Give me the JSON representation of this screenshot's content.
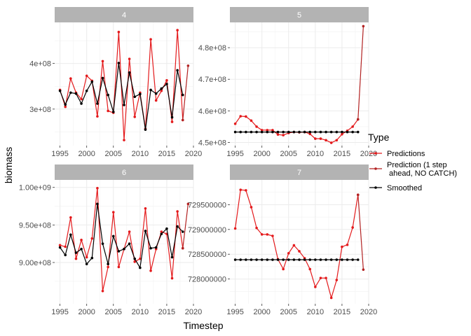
{
  "chart_data": {
    "type": "line",
    "xlabel": "Timestep",
    "ylabel": "biomass",
    "legend": {
      "title": "Type",
      "placement": "right",
      "entries": [
        {
          "series": "Predictions",
          "label_lines": [
            "Predictions"
          ],
          "color": "#e41a1c"
        },
        {
          "series": "Prediction1",
          "label_lines": [
            "Prediction (1 step",
            " ahead, NO CATCH)"
          ],
          "color": "#b22222"
        },
        {
          "series": "Smoothed",
          "label_lines": [
            "Smoothed"
          ],
          "color": "#000000"
        }
      ]
    },
    "grid": true,
    "panels": [
      {
        "strip": "4",
        "xlim": [
          1994,
          2020
        ],
        "ylim": [
          220000000,
          490000000
        ],
        "xticks": [
          1995,
          2000,
          2005,
          2010,
          2015,
          2020
        ],
        "xtick_labels": [
          "1995",
          "2000",
          "2005",
          "2010",
          "2015",
          "2020"
        ],
        "yticks": [
          300000000,
          400000000
        ],
        "ytick_labels": [
          "3e+08",
          "4e+08"
        ],
        "series": [
          {
            "key": "Predictions",
            "x": [
              1995,
              1996,
              1997,
              1998,
              1999,
              2000,
              2001,
              2002,
              2003,
              2004,
              2005,
              2006,
              2007,
              2008,
              2009,
              2010,
              2011,
              2012,
              2013,
              2014,
              2015,
              2016,
              2017,
              2018
            ],
            "values": [
              342000000,
              305000000,
              367000000,
              336000000,
              322000000,
              373000000,
              362000000,
              284000000,
              405000000,
              296000000,
              292000000,
              469000000,
              232000000,
              410000000,
              283000000,
              336000000,
              257000000,
              453000000,
              319000000,
              340000000,
              363000000,
              272000000,
              473000000,
              276000000
            ]
          },
          {
            "key": "Prediction1",
            "x": [
              2018,
              2019
            ],
            "values": [
              276000000,
              395000000
            ]
          },
          {
            "key": "Smoothed",
            "x": [
              1995,
              1996,
              1997,
              1998,
              1999,
              2000,
              2001,
              2002,
              2003,
              2004,
              2005,
              2006,
              2007,
              2008,
              2009,
              2010,
              2011,
              2012,
              2013,
              2014,
              2015,
              2016,
              2017,
              2018
            ],
            "values": [
              340000000,
              310000000,
              336000000,
              334000000,
              312000000,
              340000000,
              360000000,
              312000000,
              368000000,
              331000000,
              294000000,
              401000000,
              309000000,
              380000000,
              327000000,
              333000000,
              255000000,
              342000000,
              334000000,
              345000000,
              355000000,
              282000000,
              385000000,
              331000000
            ]
          }
        ]
      },
      {
        "strip": "5",
        "xlim": [
          1994,
          2020
        ],
        "ylim": [
          449000000,
          488000000
        ],
        "xticks": [
          1995,
          2000,
          2005,
          2010,
          2015,
          2020
        ],
        "xtick_labels": [
          "1995",
          "2000",
          "2005",
          "2010",
          "2015",
          "2020"
        ],
        "yticks": [
          450000000,
          460000000,
          470000000,
          480000000
        ],
        "ytick_labels": [
          "4.5e+08",
          "4.6e+08",
          "4.7e+08",
          "4.8e+08"
        ],
        "series": [
          {
            "key": "Predictions",
            "x": [
              1995,
              1996,
              1997,
              1998,
              1999,
              2000,
              2001,
              2002,
              2003,
              2004,
              2005,
              2006,
              2007,
              2008,
              2009,
              2010,
              2011,
              2012,
              2013,
              2014,
              2015,
              2016,
              2017,
              2018
            ],
            "values": [
              455900000,
              458300000,
              458200000,
              456900000,
              455000000,
              453900000,
              453900000,
              453900000,
              452500000,
              452300000,
              453000000,
              453300000,
              453200000,
              453300000,
              452700000,
              451200000,
              451200000,
              450700000,
              449900000,
              450700000,
              452600000,
              453700000,
              455000000,
              457300000
            ]
          },
          {
            "key": "Prediction1",
            "x": [
              2018,
              2019
            ],
            "values": [
              457300000,
              486800000
            ]
          },
          {
            "key": "Smoothed",
            "x": [
              1995,
              1996,
              1997,
              1998,
              1999,
              2000,
              2001,
              2002,
              2003,
              2004,
              2005,
              2006,
              2007,
              2008,
              2009,
              2010,
              2011,
              2012,
              2013,
              2014,
              2015,
              2016,
              2017,
              2018
            ],
            "values": [
              453300000,
              453300000,
              453300000,
              453300000,
              453300000,
              453300000,
              453300000,
              453300000,
              453300000,
              453300000,
              453300000,
              453300000,
              453300000,
              453300000,
              453300000,
              453300000,
              453300000,
              453300000,
              453300000,
              453300000,
              453300000,
              453300000,
              453300000,
              453300000
            ]
          }
        ]
      },
      {
        "strip": "6",
        "xlim": [
          1994,
          2020
        ],
        "ylim": [
          845000000,
          1010000000
        ],
        "xticks": [
          1995,
          2000,
          2005,
          2010,
          2015,
          2020
        ],
        "xtick_labels": [
          "1995",
          "2000",
          "2005",
          "2010",
          "2015",
          "2020"
        ],
        "yticks": [
          900000000,
          950000000,
          1000000000
        ],
        "ytick_labels": [
          "9.00e+08",
          "9.50e+08",
          "1.00e+09"
        ],
        "series": [
          {
            "key": "Predictions",
            "x": [
              1995,
              1996,
              1997,
              1998,
              1999,
              2000,
              2001,
              2002,
              2003,
              2004,
              2005,
              2006,
              2007,
              2008,
              2009,
              2010,
              2011,
              2012,
              2013,
              2014,
              2015,
              2016,
              2017,
              2018
            ],
            "values": [
              923000000,
              921000000,
              960000000,
              905000000,
              930000000,
              907000000,
              932000000,
              999000000,
              862000000,
              894000000,
              967000000,
              894000000,
              918000000,
              941000000,
              901000000,
              905000000,
              972000000,
              889000000,
              918000000,
              941000000,
              938000000,
              879000000,
              968000000,
              919000000
            ]
          },
          {
            "key": "Prediction1",
            "x": [
              2018,
              2019
            ],
            "values": [
              919000000,
              978000000
            ]
          },
          {
            "key": "Smoothed",
            "x": [
              1995,
              1996,
              1997,
              1998,
              1999,
              2000,
              2001,
              2002,
              2003,
              2004,
              2005,
              2006,
              2007,
              2008,
              2009,
              2010,
              2011,
              2012,
              2013,
              2014,
              2015,
              2016,
              2017,
              2018
            ],
            "values": [
              920000000,
              910000000,
              937000000,
              913000000,
              918000000,
              898000000,
              906000000,
              978000000,
              925000000,
              898000000,
              935000000,
              915000000,
              918000000,
              925000000,
              905000000,
              893000000,
              942000000,
              919000000,
              920000000,
              938000000,
              945000000,
              907000000,
              948000000,
              941000000
            ]
          }
        ]
      },
      {
        "strip": "7",
        "xlim": [
          1994,
          2020
        ],
        "ylim": [
          727500000,
          730000000
        ],
        "xticks": [
          1995,
          2000,
          2005,
          2010,
          2015,
          2020
        ],
        "xtick_labels": [
          "1995",
          "2000",
          "2005",
          "2010",
          "2015",
          "2020"
        ],
        "yticks": [
          728000000,
          728500000,
          729000000,
          729500000
        ],
        "ytick_labels": [
          "728000000",
          "728500000",
          "729000000",
          "729500000"
        ],
        "series": [
          {
            "key": "Predictions",
            "x": [
              1995,
              1996,
              1997,
              1998,
              1999,
              2000,
              2001,
              2002,
              2003,
              2004,
              2005,
              2006,
              2007,
              2008,
              2009,
              2010,
              2011,
              2012,
              2013,
              2014,
              2015,
              2016,
              2017,
              2018
            ],
            "values": [
              729020000,
              729800000,
              729790000,
              729450000,
              729030000,
              728900000,
              728900000,
              728870000,
              728400000,
              728200000,
              728520000,
              728680000,
              728560000,
              728420000,
              728200000,
              727840000,
              728020000,
              728020000,
              727620000,
              727980000,
              728650000,
              728690000,
              729040000,
              729700000
            ]
          },
          {
            "key": "Prediction1",
            "x": [
              2018,
              2019
            ],
            "values": [
              729700000,
              728190000
            ]
          },
          {
            "key": "Smoothed",
            "x": [
              1995,
              1996,
              1997,
              1998,
              1999,
              2000,
              2001,
              2002,
              2003,
              2004,
              2005,
              2006,
              2007,
              2008,
              2009,
              2010,
              2011,
              2012,
              2013,
              2014,
              2015,
              2016,
              2017,
              2018
            ],
            "values": [
              728390000,
              728390000,
              728390000,
              728390000,
              728390000,
              728390000,
              728390000,
              728390000,
              728390000,
              728390000,
              728390000,
              728390000,
              728390000,
              728390000,
              728390000,
              728390000,
              728390000,
              728390000,
              728390000,
              728390000,
              728390000,
              728390000,
              728390000,
              728390000
            ]
          }
        ]
      }
    ]
  }
}
